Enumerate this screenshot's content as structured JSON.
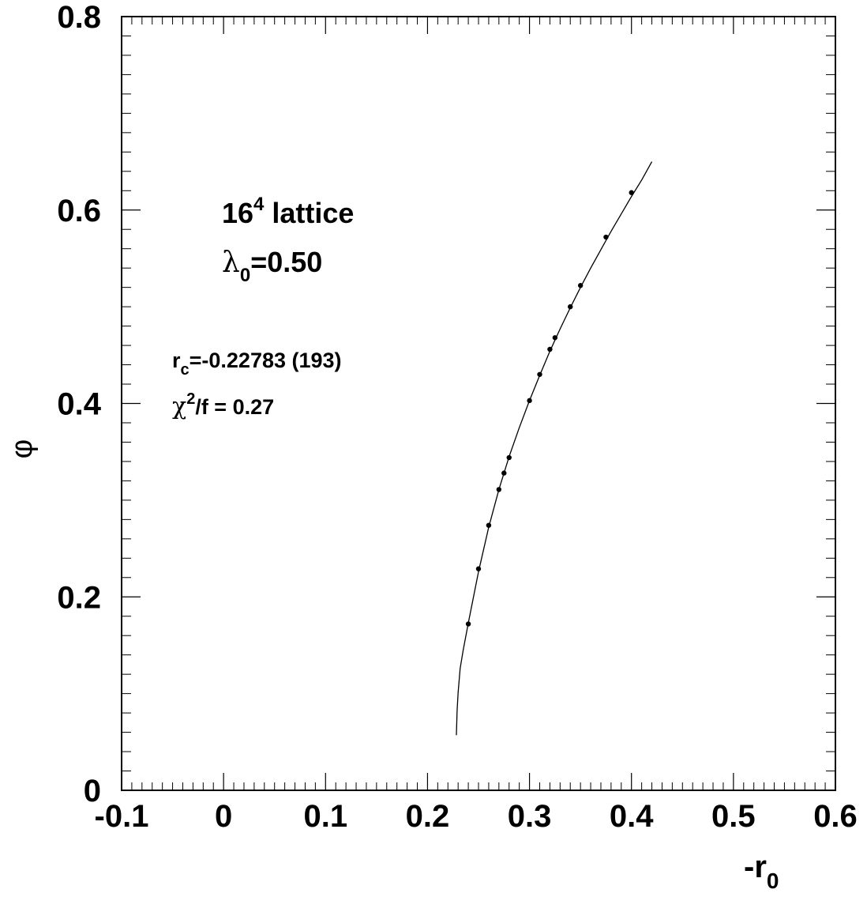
{
  "chart_data": {
    "type": "scatter",
    "xlabel": "-r",
    "xlabel_sub": "0",
    "ylabel": "φ",
    "xlim": [
      -0.1,
      0.6
    ],
    "ylim": [
      0,
      0.8
    ],
    "x_ticks": [
      "-0.1",
      "0",
      "0.1",
      "0.2",
      "0.3",
      "0.4",
      "0.5",
      "0.6"
    ],
    "y_ticks": [
      "0",
      "0.2",
      "0.4",
      "0.6",
      "0.8"
    ],
    "grid": false,
    "annotations": {
      "lattice_base": "16",
      "lattice_exp": "4",
      "lattice_text": " lattice",
      "lambda_sym": "λ",
      "lambda_sub": "0",
      "lambda_text": "=0.50",
      "rc_sym": "r",
      "rc_sub": "c",
      "rc_text": "=-0.22783 (193)",
      "chi_sym": "χ",
      "chi_exp": "2",
      "chi_text": "/f = 0.27"
    },
    "series": [
      {
        "type": "scatter",
        "x": [
          0.24,
          0.25,
          0.26,
          0.27,
          0.275,
          0.28,
          0.3,
          0.31,
          0.32,
          0.325,
          0.34,
          0.35,
          0.375,
          0.4
        ],
        "y": [
          0.172,
          0.229,
          0.274,
          0.311,
          0.328,
          0.344,
          0.403,
          0.43,
          0.456,
          0.468,
          0.5,
          0.522,
          0.572,
          0.618
        ]
      },
      {
        "type": "line",
        "x": [
          0.2283,
          0.229,
          0.23,
          0.232,
          0.235,
          0.24,
          0.25,
          0.26,
          0.27,
          0.28,
          0.29,
          0.3,
          0.31,
          0.32,
          0.33,
          0.34,
          0.35,
          0.36,
          0.37,
          0.38,
          0.39,
          0.4,
          0.41,
          0.42
        ],
        "y": [
          0.057,
          0.082,
          0.101,
          0.126,
          0.145,
          0.173,
          0.226,
          0.272,
          0.311,
          0.345,
          0.375,
          0.403,
          0.429,
          0.454,
          0.477,
          0.499,
          0.52,
          0.54,
          0.559,
          0.578,
          0.596,
          0.614,
          0.631,
          0.65
        ]
      }
    ]
  }
}
